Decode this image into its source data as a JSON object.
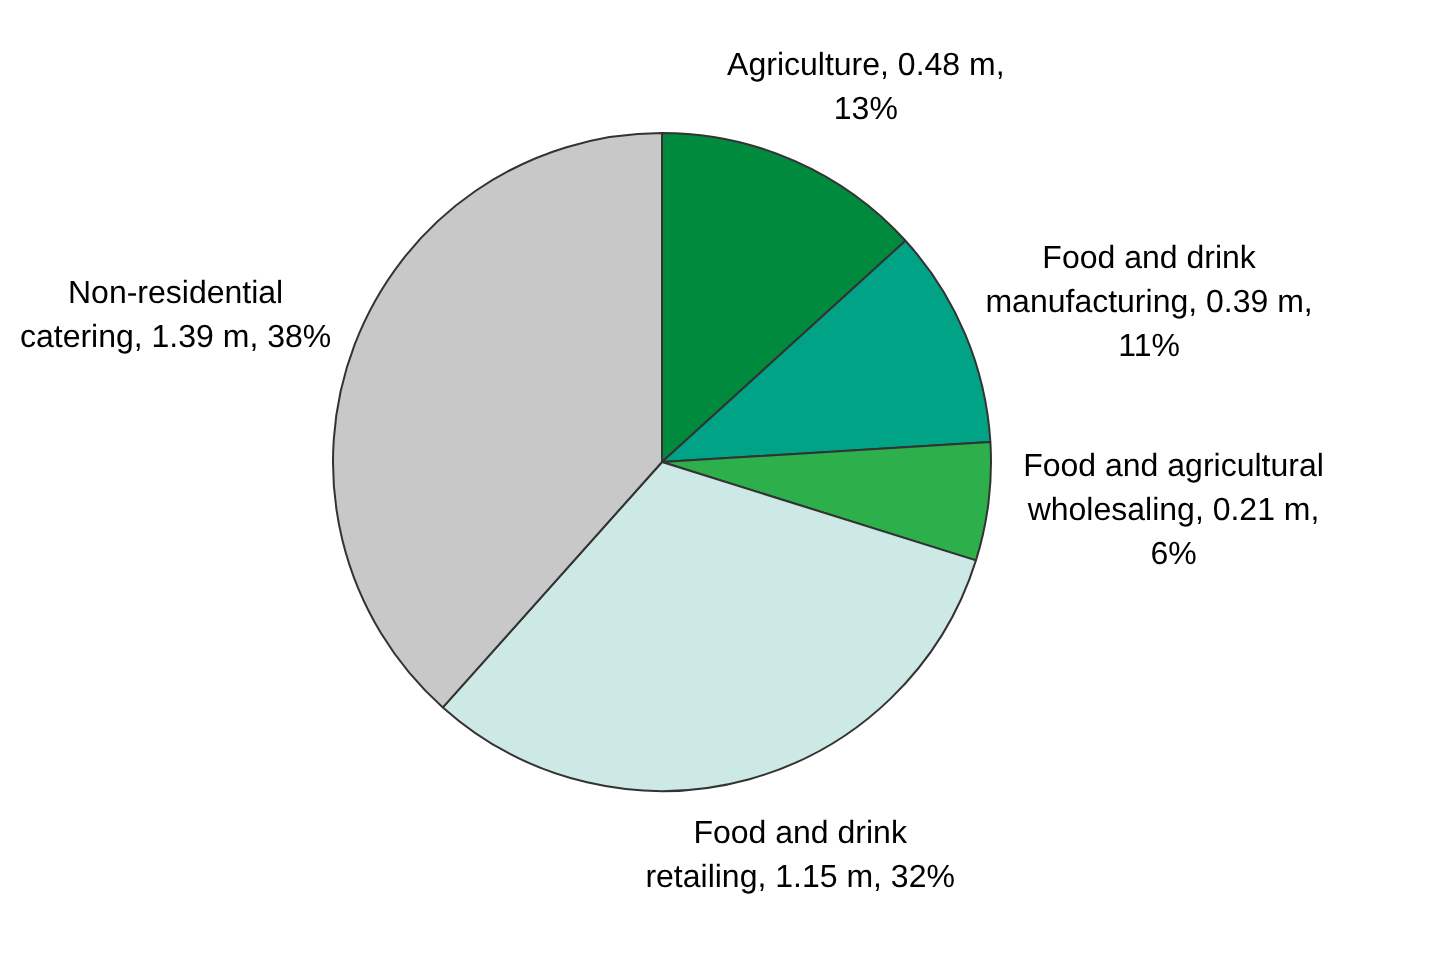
{
  "chart_data": {
    "type": "pie",
    "categories": [
      "Agriculture",
      "Food and drink manufacturing",
      "Food and agricultural wholesaling",
      "Food and drink retailing",
      "Non-residential catering"
    ],
    "values": [
      0.48,
      0.39,
      0.21,
      1.15,
      1.39
    ],
    "value_labels": [
      "0.48 m, 13%",
      "0.39 m, 11%",
      "0.21 m, 6%",
      "1.15 m, 32%",
      "1.39 m, 38%"
    ],
    "colors": [
      "#008a3e",
      "#00a386",
      "#2db04b",
      "#cde9e5",
      "#c8c8c8"
    ],
    "legend": false
  }
}
